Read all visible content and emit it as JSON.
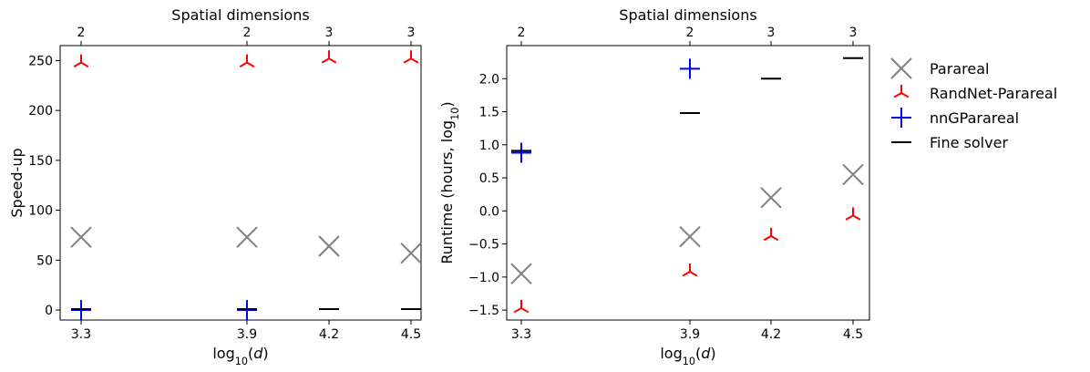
{
  "chart_data": [
    {
      "type": "scatter",
      "title": "",
      "xlabel": "log10(d)",
      "ylabel": "Speed-up",
      "top_xlabel": "Spatial dimensions",
      "x_ticks": [
        "3.3",
        "3.9",
        "4.2",
        "4.5"
      ],
      "top_ticks": [
        "2",
        "2",
        "3",
        "3"
      ],
      "y_ticks": [
        "0",
        "50",
        "100",
        "150",
        "200",
        "250"
      ],
      "ylim": [
        -10,
        265
      ],
      "x": [
        3.3,
        3.9,
        4.2,
        4.5
      ],
      "series": [
        {
          "name": "Parareal",
          "values": [
            73,
            73,
            64,
            57
          ]
        },
        {
          "name": "RandNet-Parareal",
          "values": [
            248,
            248,
            252,
            252
          ]
        },
        {
          "name": "nnGParareal",
          "values": [
            0,
            0,
            null,
            null
          ]
        },
        {
          "name": "Fine solver",
          "values": [
            1,
            1,
            1,
            1
          ]
        }
      ]
    },
    {
      "type": "scatter",
      "title": "",
      "xlabel": "log10(d)",
      "ylabel": "Runtime (hours, log10)",
      "top_xlabel": "Spatial dimensions",
      "x_ticks": [
        "3.3",
        "3.9",
        "4.2",
        "4.5"
      ],
      "top_ticks": [
        "2",
        "2",
        "3",
        "3"
      ],
      "y_ticks": [
        "-1.5",
        "-1.0",
        "-0.5",
        "0.0",
        "0.5",
        "1.0",
        "1.5",
        "2.0"
      ],
      "ylim": [
        -1.65,
        2.5
      ],
      "x": [
        3.3,
        3.9,
        4.2,
        4.5
      ],
      "series": [
        {
          "name": "Parareal",
          "values": [
            -0.95,
            -0.39,
            0.2,
            0.55
          ]
        },
        {
          "name": "RandNet-Parareal",
          "values": [
            -1.47,
            -0.92,
            -0.38,
            -0.07
          ]
        },
        {
          "name": "nnGParareal",
          "values": [
            0.88,
            2.15,
            null,
            null
          ]
        },
        {
          "name": "Fine solver",
          "values": [
            0.91,
            1.48,
            2.0,
            2.31
          ]
        }
      ]
    }
  ],
  "legend": {
    "placement": "outside-right",
    "items": [
      {
        "label": "Parareal",
        "color": "#808080",
        "marker": "x"
      },
      {
        "label": "RandNet-Parareal",
        "color": "#ff0000",
        "marker": "tri_up"
      },
      {
        "label": "nnGParareal",
        "color": "#0000ff",
        "marker": "plus"
      },
      {
        "label": "Fine solver",
        "color": "#000000",
        "marker": "hline"
      }
    ]
  }
}
